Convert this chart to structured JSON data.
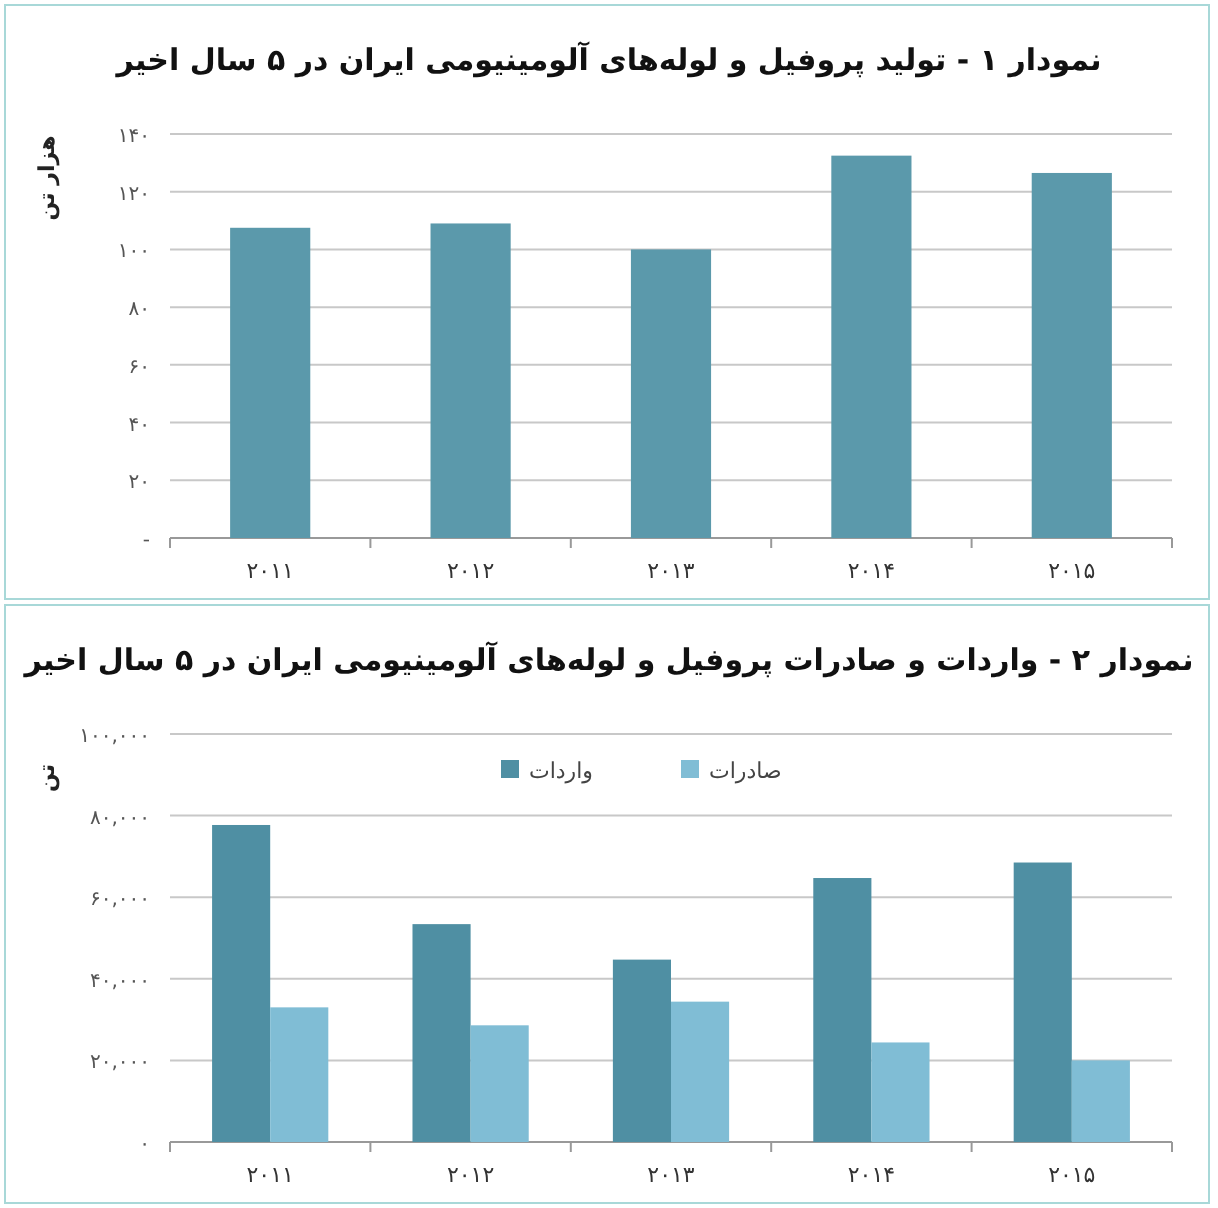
{
  "chart_data": [
    {
      "type": "bar",
      "title": "نمودار ۱ - تولید پروفیل و لوله‌های آلومینیومی ایران در ۵ سال اخیر",
      "ylabel": "هزار تن",
      "categories": [
        "۲۰۱۱",
        "۲۰۱۲",
        "۲۰۱۳",
        "۲۰۱۴",
        "۲۰۱۵"
      ],
      "values": [
        107.5,
        109,
        100,
        132.5,
        126.5
      ],
      "color": "#5b99ab",
      "ylim": [
        0,
        140
      ],
      "yticks": [
        {
          "value": 0,
          "label": "-"
        },
        {
          "value": 20,
          "label": "۲۰"
        },
        {
          "value": 40,
          "label": "۴۰"
        },
        {
          "value": 60,
          "label": "۶۰"
        },
        {
          "value": 80,
          "label": "۸۰"
        },
        {
          "value": 100,
          "label": "۱۰۰"
        },
        {
          "value": 120,
          "label": "۱۲۰"
        },
        {
          "value": 140,
          "label": "۱۴۰"
        }
      ],
      "grid": "y"
    },
    {
      "type": "bar",
      "title": "نمودار ۲ - واردات و صادرات پروفیل و لوله‌های آلومینیومی ایران در ۵ سال اخیر",
      "ylabel": "تن",
      "categories": [
        "۲۰۱۱",
        "۲۰۱۲",
        "۲۰۱۳",
        "۲۰۱۴",
        "۲۰۱۵"
      ],
      "series": [
        {
          "name": "واردات",
          "color": "#4f8fa3",
          "values": [
            77700,
            53400,
            44700,
            64700,
            68500
          ]
        },
        {
          "name": "صادرات",
          "color": "#80bdd5",
          "values": [
            33000,
            28600,
            34400,
            24400,
            20000
          ]
        }
      ],
      "ylim": [
        0,
        100000
      ],
      "yticks": [
        {
          "value": 0,
          "label": "۰"
        },
        {
          "value": 20000,
          "label": "۲۰,۰۰۰"
        },
        {
          "value": 40000,
          "label": "۴۰,۰۰۰"
        },
        {
          "value": 60000,
          "label": "۶۰,۰۰۰"
        },
        {
          "value": 80000,
          "label": "۸۰,۰۰۰"
        },
        {
          "value": 100000,
          "label": "۱۰۰,۰۰۰"
        }
      ],
      "grid": "y",
      "legend": "top"
    }
  ]
}
